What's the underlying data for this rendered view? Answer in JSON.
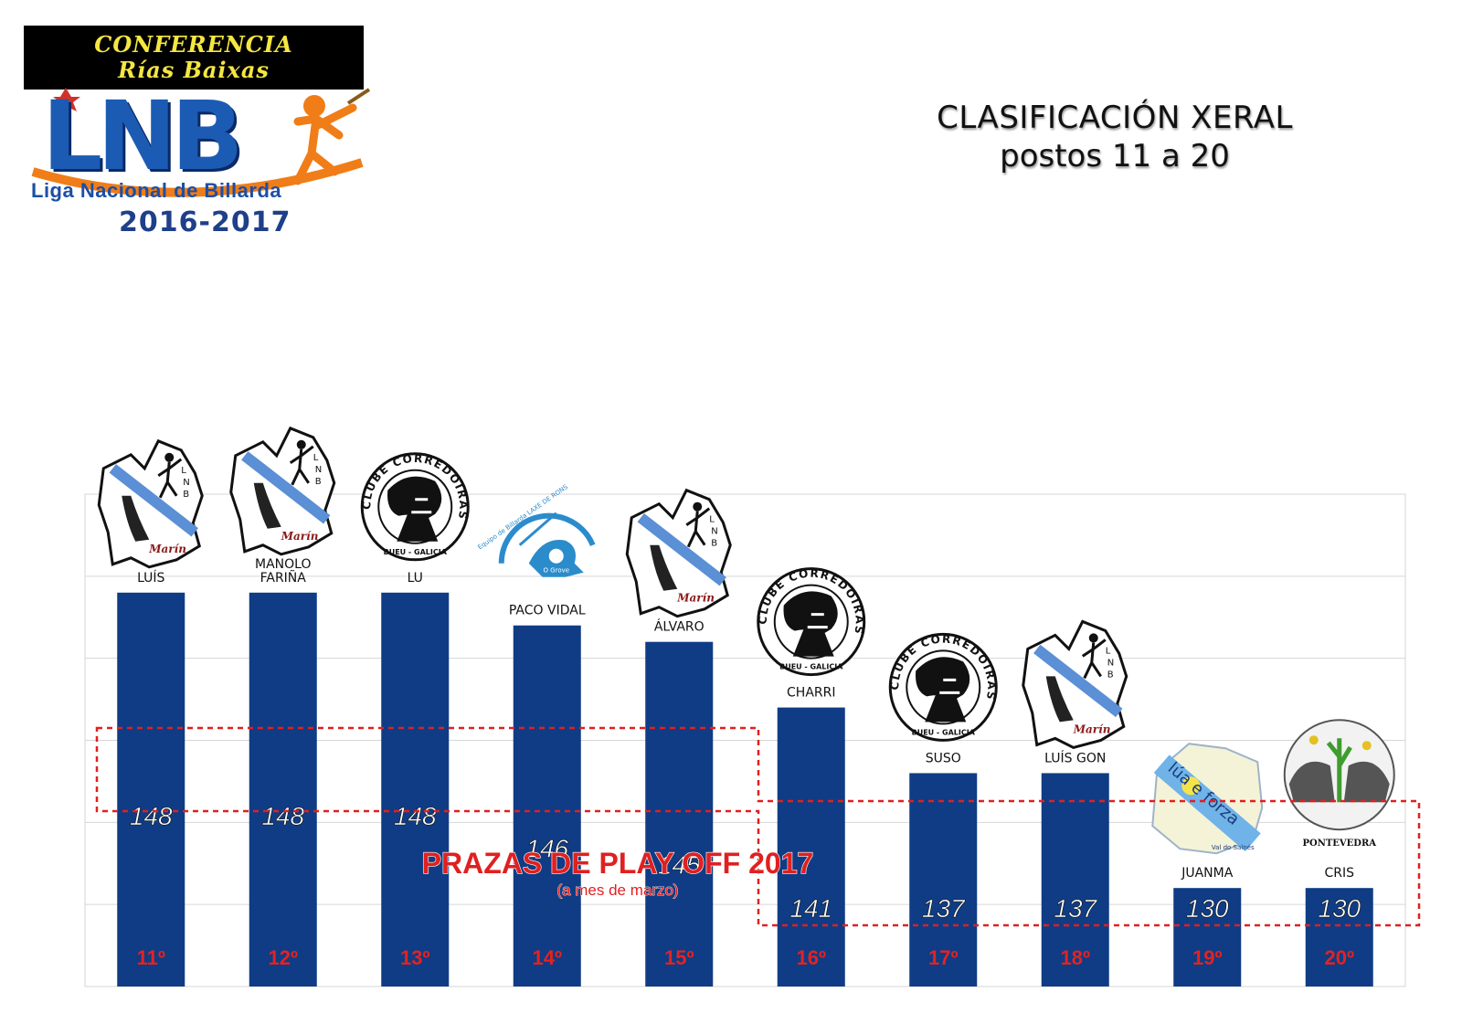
{
  "header": {
    "conference_line1": "CONFERENCIA",
    "conference_line2": "Rías Baixas",
    "logo_text": "LNB",
    "league_name": "Liga Nacional de Billarda",
    "season": "2016-2017"
  },
  "title": {
    "line1": "CLASIFICACIÓN XERAL",
    "line2": "postos 11 a 20"
  },
  "chart_data": {
    "type": "bar",
    "categories": [
      "LUÍS",
      "MANOLO FARIÑA",
      "LU",
      "PACO VIDAL",
      "ÁLVARO",
      "CHARRI",
      "SUSO",
      "LUÍS GON",
      "JUANMA",
      "CRIS"
    ],
    "values": [
      148,
      148,
      148,
      146,
      145,
      141,
      137,
      137,
      130,
      130
    ],
    "positions": [
      "11º",
      "12º",
      "13º",
      "14º",
      "15º",
      "16º",
      "17º",
      "18º",
      "19º",
      "20º"
    ],
    "ylim": [
      124,
      154
    ],
    "grid": true,
    "bar_color": "#0f3c84",
    "annotation": {
      "title": "PRAZAS DE PLAY OFF 2017",
      "subtitle": "(a mes de marzo)",
      "color": "#e02020"
    },
    "club_logos": [
      "marin",
      "marin",
      "corredoiras",
      "laxe-de-rons",
      "marin",
      "corredoiras",
      "corredoiras",
      "marin",
      "lua-e-forza",
      "pontevedra"
    ],
    "logo_texts": {
      "marin": "Marín",
      "corredoiras": "CLUBE CORREDOIRAS",
      "corredoiras_sub": "BUEU - GALICIA",
      "laxe_de_rons": "Equipo de Billarda LAXE DE RONS",
      "laxe_sub": "O Grove",
      "lua_e_forza": "lúa e forza",
      "lua_sub": "Val do Salnés",
      "pontevedra": "PONTEVEDRA"
    }
  }
}
